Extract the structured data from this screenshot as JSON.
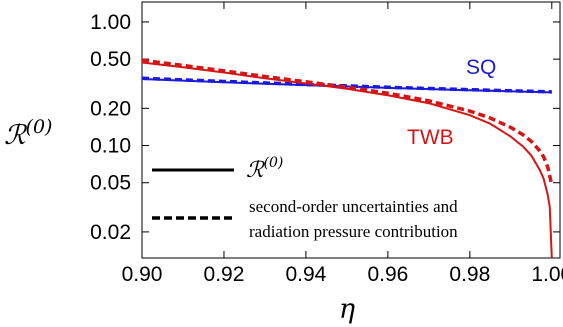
{
  "chart_data": {
    "type": "line",
    "title": "",
    "xlabel": "η",
    "ylabel": "ℛ(0)",
    "ylabel_main": "ℛ",
    "ylabel_sup": "(0)",
    "xlim": [
      0.9,
      1.002
    ],
    "ylim": [
      0.0123,
      1.45
    ],
    "yscale": "log",
    "grid": false,
    "x_ticks": [
      0.9,
      0.92,
      0.94,
      0.96,
      0.98,
      1.0
    ],
    "x_tick_labels": [
      "0.90",
      "0.92",
      "0.94",
      "0.96",
      "0.98",
      "1.00"
    ],
    "y_ticks": [
      0.02,
      0.05,
      0.1,
      0.2,
      0.5,
      1.0
    ],
    "y_tick_labels": [
      "0.02",
      "0.05",
      "0.10",
      "0.20",
      "0.50",
      "1.00"
    ],
    "series": [
      {
        "label": "SQ",
        "color": "#1a1adc",
        "style": "solid",
        "x": [
          0.9,
          0.92,
          0.94,
          0.96,
          0.98,
          1.0
        ],
        "y": [
          0.345,
          0.325,
          0.308,
          0.293,
          0.28,
          0.269
        ]
      },
      {
        "label": "SQ",
        "color": "#1a1adc",
        "style": "dashed",
        "x": [
          0.9,
          0.92,
          0.94,
          0.96,
          0.98,
          1.0
        ],
        "y": [
          0.35,
          0.33,
          0.312,
          0.296,
          0.283,
          0.272
        ]
      },
      {
        "label": "TWB",
        "color": "#d41616",
        "style": "solid",
        "x": [
          0.9,
          0.91,
          0.92,
          0.93,
          0.94,
          0.95,
          0.96,
          0.97,
          0.98,
          0.985,
          0.99,
          0.993,
          0.995,
          0.997,
          0.998,
          0.999,
          0.9995,
          1.0
        ],
        "y": [
          0.47,
          0.43,
          0.39,
          0.35,
          0.318,
          0.288,
          0.255,
          0.22,
          0.176,
          0.15,
          0.118,
          0.098,
          0.083,
          0.064,
          0.054,
          0.04,
          0.032,
          0.012
        ]
      },
      {
        "label": "TWB",
        "color": "#d41616",
        "style": "dashed",
        "x": [
          0.9,
          0.91,
          0.92,
          0.93,
          0.94,
          0.95,
          0.96,
          0.97,
          0.98,
          0.985,
          0.99,
          0.993,
          0.995,
          0.997,
          0.998,
          0.999,
          1.0
        ],
        "y": [
          0.49,
          0.445,
          0.402,
          0.362,
          0.328,
          0.297,
          0.265,
          0.23,
          0.19,
          0.167,
          0.14,
          0.122,
          0.108,
          0.091,
          0.081,
          0.067,
          0.048
        ]
      }
    ],
    "series_labels": [
      {
        "text": "SQ",
        "color": "#1a1adc"
      },
      {
        "text": "TWB",
        "color": "#d41616"
      }
    ],
    "legend": {
      "placement": "bottom-left",
      "entries": [
        {
          "style": "solid",
          "math_main": "ℛ",
          "math_sup": "(0)"
        },
        {
          "style": "dashed",
          "lines": [
            "second-order uncertainties and",
            "radiation pressure contribution"
          ]
        }
      ]
    }
  }
}
